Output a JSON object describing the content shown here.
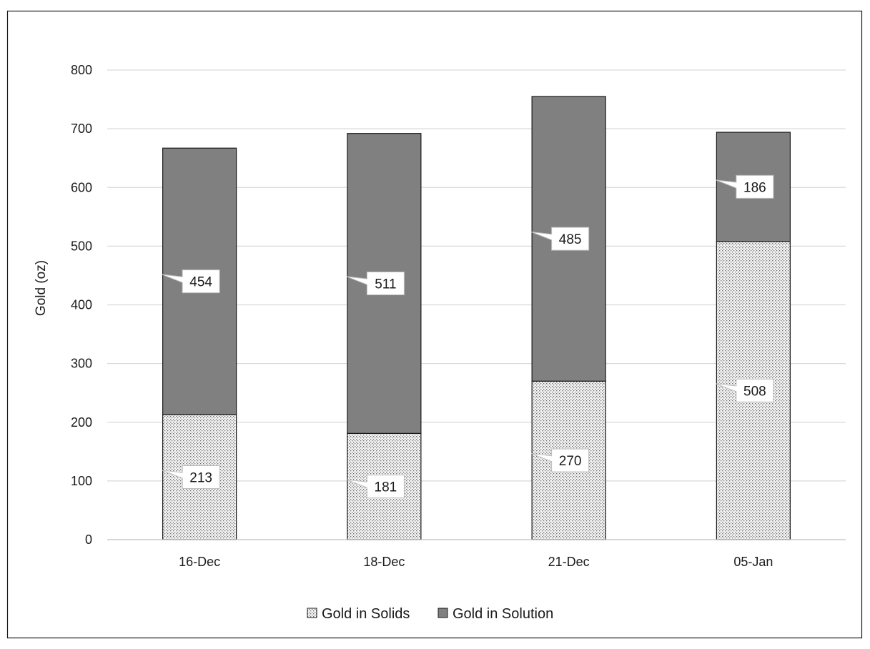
{
  "chart_data": {
    "type": "bar",
    "stacked": true,
    "title": "",
    "xlabel": "",
    "ylabel": "Gold (oz)",
    "categories": [
      "16-Dec",
      "18-Dec",
      "21-Dec",
      "05-Jan"
    ],
    "series": [
      {
        "name": "Gold in Solids",
        "values": [
          213,
          181,
          270,
          508
        ],
        "labels": [
          "213",
          "181",
          "270",
          "508"
        ],
        "color": "#e8e8e8",
        "pattern": "dotted"
      },
      {
        "name": "Gold in Solution",
        "values": [
          454,
          511,
          485,
          186
        ],
        "labels": [
          "454",
          "511",
          "485",
          "186"
        ],
        "color": "#808080",
        "pattern": "solid"
      }
    ],
    "ylim": [
      0,
      800
    ],
    "yticks": [
      0,
      100,
      200,
      300,
      400,
      500,
      600,
      700,
      800
    ],
    "ytick_labels": [
      "0",
      "100",
      "200",
      "300",
      "400",
      "500",
      "600",
      "700",
      "800"
    ],
    "grid": true,
    "legend_position": "bottom-center"
  }
}
